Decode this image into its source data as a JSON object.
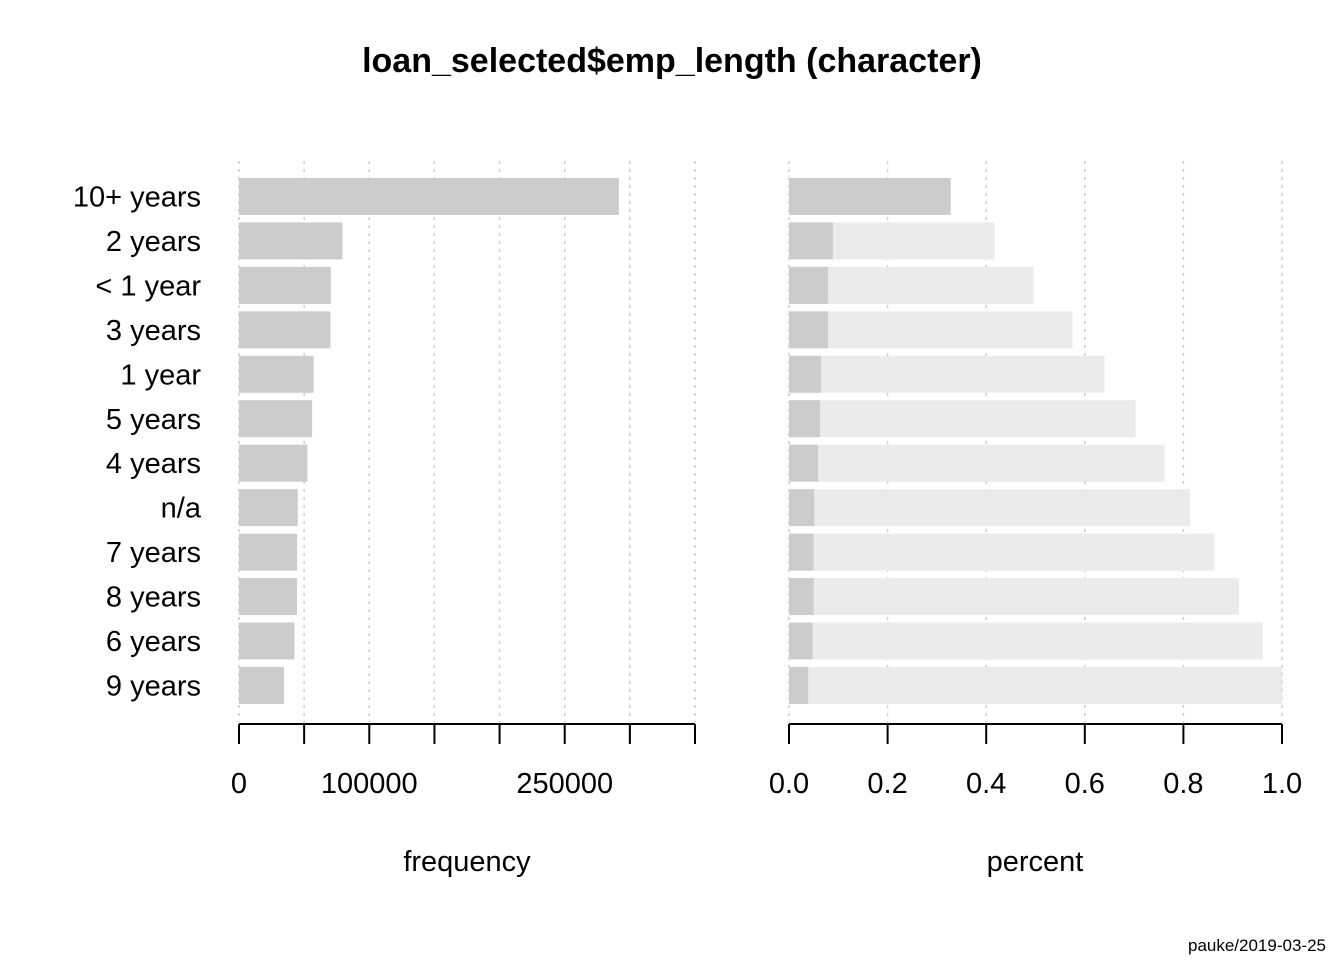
{
  "chart_data": {
    "title": "loan_selected$emp_length (character)",
    "categories": [
      "10+ years",
      "2 years",
      "< 1 year",
      "3 years",
      "1 year",
      "5 years",
      "4 years",
      "n/a",
      "7 years",
      "8 years",
      "6 years",
      "9 years"
    ],
    "panels": [
      {
        "type": "bar",
        "orientation": "horizontal",
        "xlabel": "frequency",
        "xlim": [
          0,
          350000
        ],
        "grid": "vertical-dotted",
        "tick_values": [
          0,
          50000,
          100000,
          150000,
          200000,
          250000,
          300000,
          350000
        ],
        "tick_labels": [
          "0",
          "",
          "100000",
          "",
          "",
          "250000",
          "",
          ""
        ],
        "values": [
          291600,
          79400,
          70500,
          70200,
          57300,
          56100,
          52500,
          45100,
          44600,
          44500,
          42600,
          34500
        ]
      },
      {
        "type": "bar",
        "orientation": "horizontal",
        "stacking": "cumulative",
        "xlabel": "percent",
        "xlim": [
          0,
          1
        ],
        "grid": "vertical-dotted",
        "tick_values": [
          0,
          0.2,
          0.4,
          0.6,
          0.8,
          1.0
        ],
        "tick_labels": [
          "0.0",
          "0.2",
          "0.4",
          "0.6",
          "0.8",
          "1.0"
        ],
        "values": [
          0.328,
          0.089,
          0.079,
          0.079,
          0.065,
          0.063,
          0.059,
          0.051,
          0.05,
          0.05,
          0.048,
          0.039
        ],
        "cumulative": [
          0.328,
          0.417,
          0.496,
          0.575,
          0.64,
          0.703,
          0.762,
          0.813,
          0.863,
          0.913,
          0.961,
          1.0
        ]
      }
    ],
    "colors": {
      "bar": "#cccccc",
      "cumulative": "#ebebeb",
      "grid": "#cccccc",
      "axis": "#000000"
    }
  },
  "footer": "pauke/2019-03-25"
}
